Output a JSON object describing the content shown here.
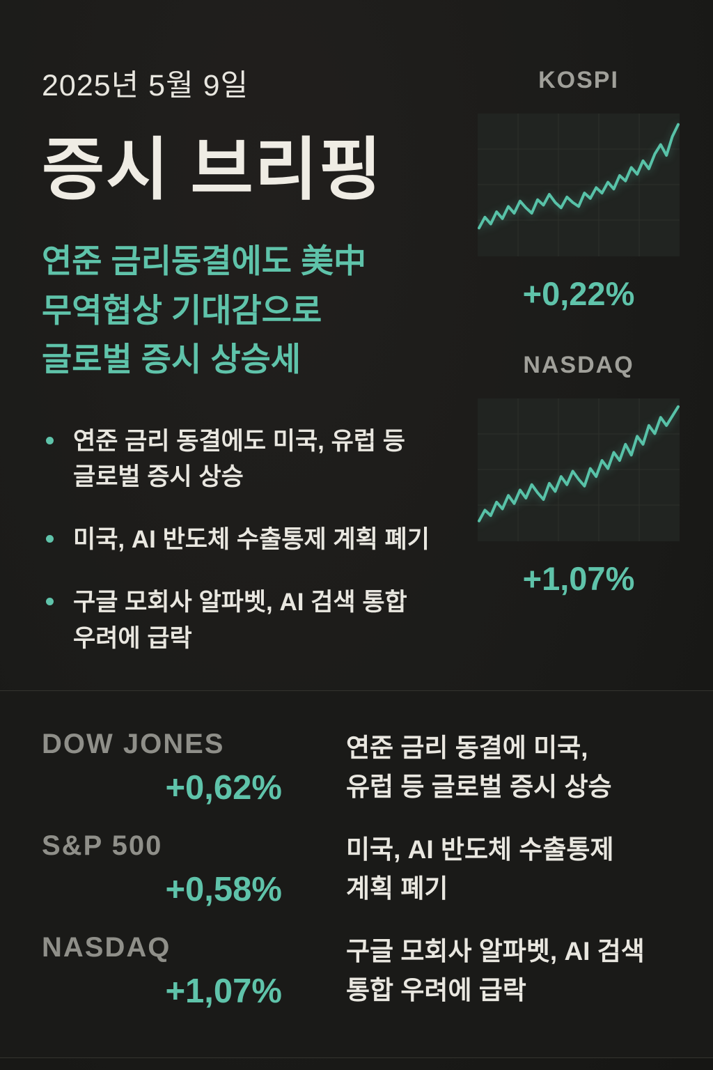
{
  "colors": {
    "background": "#1b1b19",
    "panel": "#1a1a18",
    "accent_teal": "#5fc3aa",
    "text_cream": "#eceae2",
    "muted_gray": "#9b9b95",
    "chart_line": "#58c2a8"
  },
  "header": {
    "date": "2025년 5월 9일",
    "title": "증시 브리핑",
    "subtitle": "연준 금리동결에도 美中\n무역협상 기대감으로\n글로벌 증시 상승세"
  },
  "bullets": [
    "연준 금리 동결에도 미국, 유럽 등\n글로벌 증시 상승",
    "미국, AI 반도체 수출통제 계획 폐기",
    "구글 모회사 알파벳, AI 검색 통합\n우려에 급락"
  ],
  "chart_data": [
    {
      "type": "line",
      "title": "KOSPI",
      "change_label": "+0,22%",
      "x": "intraday (unlabeled)",
      "ylim": [
        0,
        100
      ],
      "grid": true,
      "legend": "none",
      "values": [
        18,
        26,
        21,
        30,
        25,
        34,
        29,
        38,
        33,
        29,
        39,
        35,
        43,
        37,
        33,
        41,
        37,
        34,
        44,
        40,
        48,
        44,
        52,
        47,
        57,
        53,
        63,
        58,
        68,
        62,
        73,
        80,
        72,
        86,
        95
      ]
    },
    {
      "type": "line",
      "title": "NASDAQ",
      "change_label": "+1,07%",
      "x": "intraday (unlabeled)",
      "ylim": [
        0,
        100
      ],
      "grid": true,
      "legend": "none",
      "values": [
        12,
        20,
        16,
        26,
        21,
        31,
        25,
        35,
        29,
        39,
        33,
        28,
        40,
        34,
        45,
        39,
        49,
        43,
        38,
        51,
        45,
        57,
        51,
        63,
        57,
        69,
        61,
        75,
        69,
        83,
        77,
        89,
        83,
        90,
        97
      ]
    }
  ],
  "summary": {
    "indices": [
      {
        "name": "DOW JONES",
        "change": "+0,62%"
      },
      {
        "name": "S&P 500",
        "change": "+0,58%"
      },
      {
        "name": "NASDAQ",
        "change": "+1,07%"
      }
    ],
    "notes": [
      "연준 금리 동결에 미국,\n유럽 등 글로벌 증시 상승",
      "미국, AI 반도체 수출통제\n계획 폐기",
      "구글 모회사 알파벳, AI 검색\n통합 우려에 급락"
    ]
  }
}
